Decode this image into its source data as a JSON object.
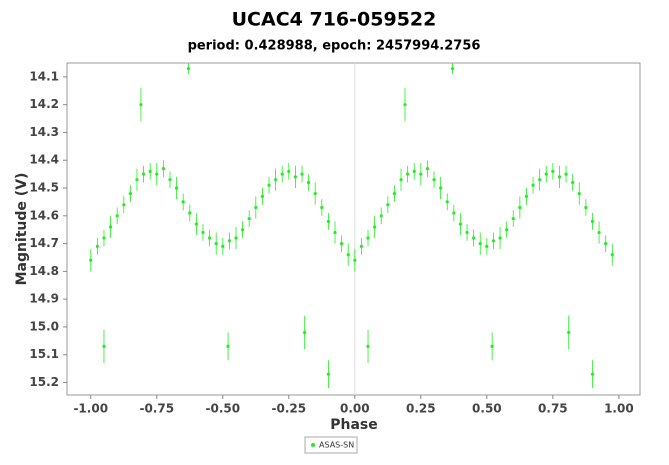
{
  "chart_data": {
    "type": "scatter",
    "title": "UCAC4 716-059522",
    "subtitle": "period: 0.428988, epoch: 2457994.2756",
    "x_label": "Phase",
    "y_label": "Magnitude (V)",
    "xlim": [
      -1.09,
      1.08
    ],
    "ylim": [
      14.05,
      15.245
    ],
    "y_inverted": true,
    "xticks": [
      {
        "value": -1,
        "label": "-1.00"
      },
      {
        "value": -0.75,
        "label": "-0.75"
      },
      {
        "value": -0.5,
        "label": "-0.50"
      },
      {
        "value": -0.25,
        "label": "-0.25"
      },
      {
        "value": 0,
        "label": "0.00"
      },
      {
        "value": 0.25,
        "label": "0.25"
      },
      {
        "value": 0.5,
        "label": "0.50"
      },
      {
        "value": 0.75,
        "label": "0.75"
      },
      {
        "value": 1,
        "label": "1.00"
      }
    ],
    "yticks": [
      14.1,
      14.2,
      14.3,
      14.4,
      14.5,
      14.6,
      14.7,
      14.8,
      14.9,
      {
        "value": 15,
        "label": "15.0"
      },
      15.1,
      15.2
    ],
    "zero_line": true,
    "legend": "bottom",
    "series": [
      {
        "name": "ASAS-SN",
        "color": "#22ee22",
        "x": [
          0,
          0.025,
          0.05,
          0.075,
          0.1,
          0.125,
          0.15,
          0.175,
          0.2,
          0.225,
          0.25,
          0.275,
          0.3,
          0.325,
          0.35,
          0.375,
          0.4,
          0.425,
          0.45,
          0.475,
          0.5,
          0.525,
          0.55,
          0.575,
          0.6,
          0.625,
          0.65,
          0.675,
          0.7,
          0.725,
          0.75,
          0.775,
          0.8,
          0.825,
          0.85,
          0.875,
          0.9,
          0.925,
          0.95,
          0.975,
          0.37,
          0.81,
          0.9,
          0.05,
          0.52,
          0.19,
          -1,
          -0.975,
          -0.95,
          -0.925,
          -0.9,
          -0.875,
          -0.85,
          -0.825,
          -0.8,
          -0.775,
          -0.75,
          -0.725,
          -0.7,
          -0.675,
          -0.65,
          -0.625,
          -0.6,
          -0.575,
          -0.55,
          -0.525,
          -0.5,
          -0.475,
          -0.45,
          -0.425,
          -0.4,
          -0.375,
          -0.35,
          -0.325,
          -0.3,
          -0.275,
          -0.25,
          -0.225,
          -0.2,
          -0.175,
          -0.15,
          -0.125,
          -0.1,
          -0.075,
          -0.05,
          -0.025,
          -0.63,
          -0.19,
          -0.1,
          -0.95,
          -0.48,
          -0.81
        ],
        "values": [
          14.76,
          14.71,
          14.68,
          14.64,
          14.6,
          14.56,
          14.52,
          14.47,
          14.45,
          14.44,
          14.45,
          14.43,
          14.47,
          14.5,
          14.55,
          14.59,
          14.63,
          14.66,
          14.68,
          14.7,
          14.71,
          14.69,
          14.68,
          14.65,
          14.61,
          14.57,
          14.53,
          14.49,
          14.47,
          14.45,
          14.44,
          14.46,
          14.45,
          14.48,
          14.52,
          14.57,
          14.62,
          14.66,
          14.7,
          14.74,
          14.07,
          15.02,
          15.17,
          15.07,
          15.07,
          14.2,
          14.76,
          14.71,
          14.68,
          14.64,
          14.6,
          14.56,
          14.52,
          14.47,
          14.45,
          14.44,
          14.45,
          14.43,
          14.47,
          14.5,
          14.55,
          14.59,
          14.63,
          14.66,
          14.68,
          14.7,
          14.71,
          14.69,
          14.68,
          14.65,
          14.61,
          14.57,
          14.53,
          14.49,
          14.47,
          14.45,
          14.44,
          14.46,
          14.45,
          14.48,
          14.52,
          14.57,
          14.62,
          14.66,
          14.7,
          14.74,
          14.07,
          15.02,
          15.17,
          15.07,
          15.07,
          14.2
        ],
        "errors": [
          0.04,
          0.03,
          0.03,
          0.04,
          0.03,
          0.03,
          0.03,
          0.04,
          0.03,
          0.03,
          0.04,
          0.03,
          0.03,
          0.04,
          0.03,
          0.03,
          0.04,
          0.03,
          0.03,
          0.04,
          0.03,
          0.03,
          0.04,
          0.03,
          0.03,
          0.04,
          0.03,
          0.03,
          0.04,
          0.03,
          0.03,
          0.04,
          0.03,
          0.03,
          0.04,
          0.03,
          0.03,
          0.04,
          0.03,
          0.04,
          0.02,
          0.06,
          0.05,
          0.06,
          0.05,
          0.06,
          0.04,
          0.03,
          0.03,
          0.04,
          0.03,
          0.03,
          0.03,
          0.04,
          0.03,
          0.03,
          0.04,
          0.03,
          0.03,
          0.04,
          0.03,
          0.03,
          0.04,
          0.03,
          0.03,
          0.04,
          0.03,
          0.03,
          0.04,
          0.03,
          0.03,
          0.04,
          0.03,
          0.03,
          0.04,
          0.03,
          0.03,
          0.04,
          0.03,
          0.03,
          0.04,
          0.03,
          0.03,
          0.04,
          0.03,
          0.04,
          0.02,
          0.06,
          0.05,
          0.06,
          0.05,
          0.06
        ]
      }
    ]
  }
}
